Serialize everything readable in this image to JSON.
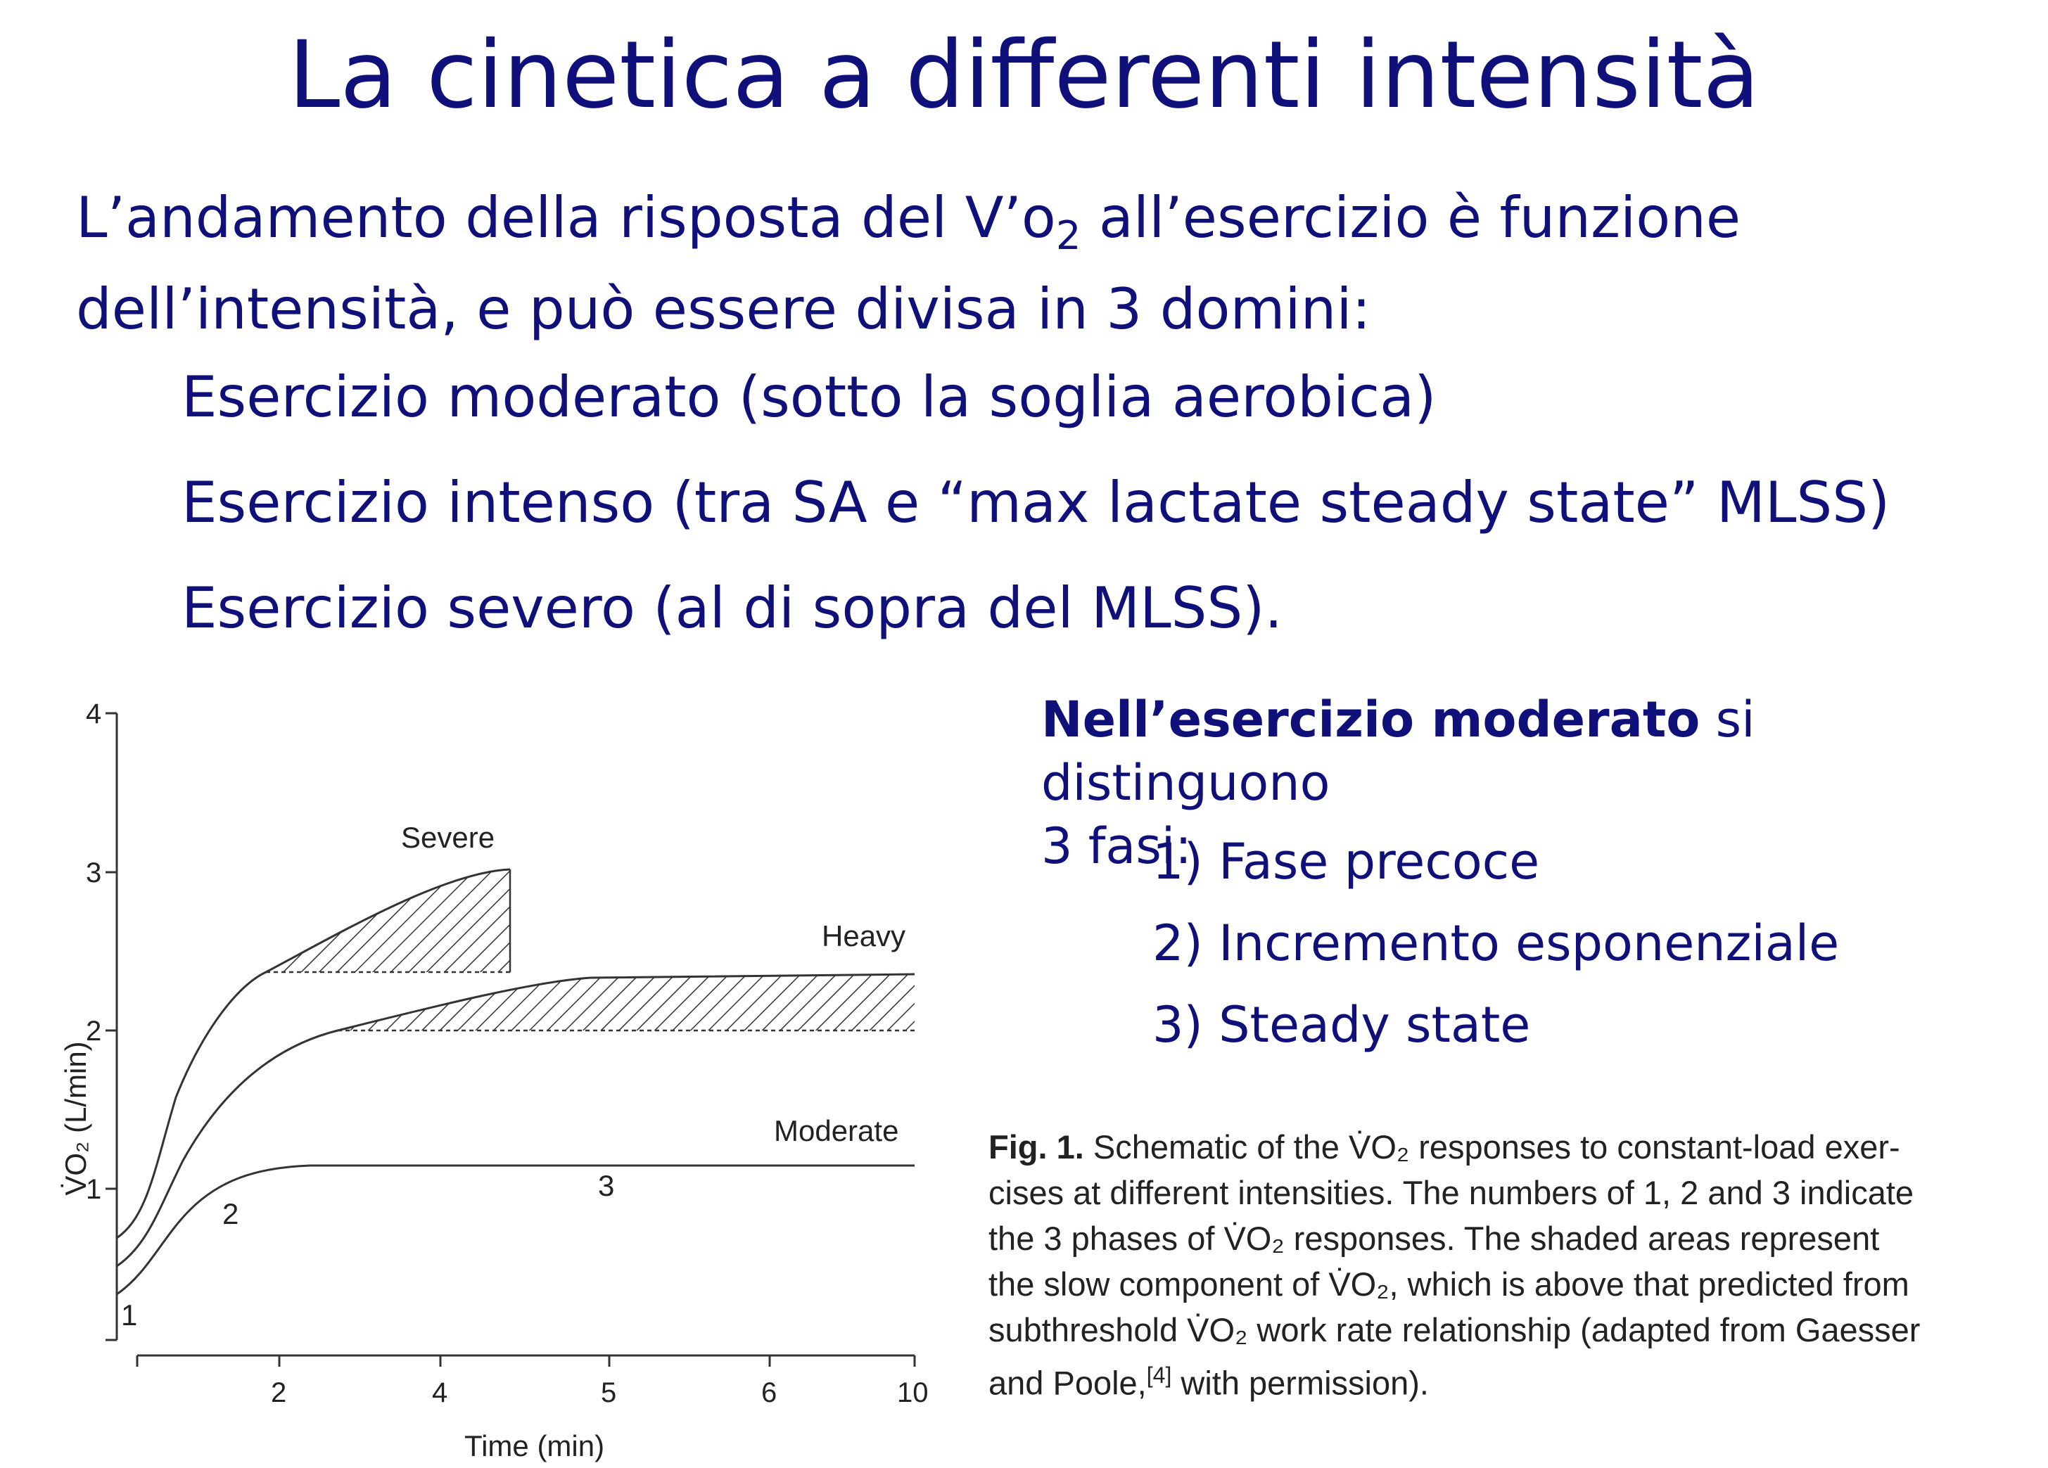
{
  "title": "La cinetica a differenti intensità",
  "intro": {
    "line1_pre": "L’andamento della risposta del V’o",
    "line1_sub": "2",
    "line1_post": " all’esercizio è funzione",
    "line2": "dell’intensità, e può essere divisa in 3 domini:"
  },
  "domains": [
    "Esercizio moderato (sotto la soglia aerobica)",
    "Esercizio intenso (tra SA e “max lactate steady state” MLSS)",
    "Esercizio severo (al di sopra del MLSS)."
  ],
  "side": {
    "bold": "Nell’esercizio moderato",
    "rest": " si distinguono",
    "line2": "3 fasi:",
    "phases": [
      "1) Fase precoce",
      "2) Incremento esponenziale",
      "3) Steady state"
    ]
  },
  "caption": {
    "label": "Fig. 1.",
    "line1": " Schematic of the V̇O₂ responses to constant-load exer-",
    "line2": "cises at different intensities. The numbers of 1, 2 and 3 indicate",
    "line3": "the 3 phases of V̇O₂ responses. The shaded areas represent",
    "line4": "the slow component of V̇O₂, which is above that predicted from",
    "line5": "subthreshold V̇O₂ work rate relationship (adapted from Gaesser",
    "line6_pre": "and Poole,",
    "line6_ref": "[4]",
    "line6_post": " with permission)."
  },
  "figure": {
    "ylabel": "V̇O₂ (L/min)",
    "xlabel": "Time (min)",
    "yticks": [
      "1",
      "2",
      "3",
      "4"
    ],
    "xticks": [
      "2",
      "4",
      "5",
      "6",
      "10"
    ],
    "curves": {
      "severe": "Severe",
      "heavy": "Heavy",
      "moderate": "Moderate"
    },
    "phase_labels": [
      "1",
      "2",
      "3"
    ]
  }
}
